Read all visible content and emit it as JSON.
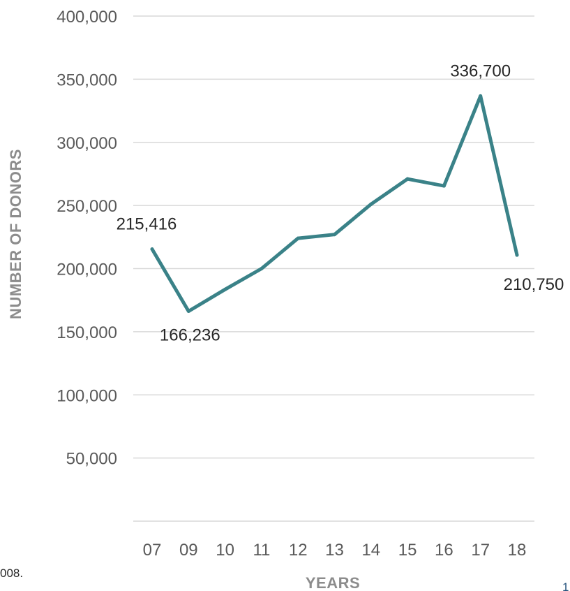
{
  "chart_data": {
    "type": "line",
    "title": "",
    "xlabel": "YEARS",
    "ylabel": "NUMBER OF DONORS",
    "categories": [
      "07",
      "09",
      "10",
      "11",
      "12",
      "13",
      "14",
      "15",
      "16",
      "17",
      "18"
    ],
    "ylim": [
      0,
      400000
    ],
    "y_ticks": [
      "50,000",
      "100,000",
      "150,000",
      "200,000",
      "250,000",
      "300,000",
      "350,000",
      "400,000"
    ],
    "series": [
      {
        "values": [
          215416,
          166236,
          183500,
          200000,
          224000,
          227000,
          251000,
          271000,
          265500,
          336700,
          210750
        ],
        "color": "#3a8288"
      }
    ],
    "data_labels": [
      {
        "index": 0,
        "text": "215,416"
      },
      {
        "index": 1,
        "text": "166,236"
      },
      {
        "index": 9,
        "text": "336,700"
      },
      {
        "index": 10,
        "text": "210,750"
      }
    ],
    "grid": true,
    "legend": "none"
  },
  "footnote": "008.",
  "page_number": "1"
}
